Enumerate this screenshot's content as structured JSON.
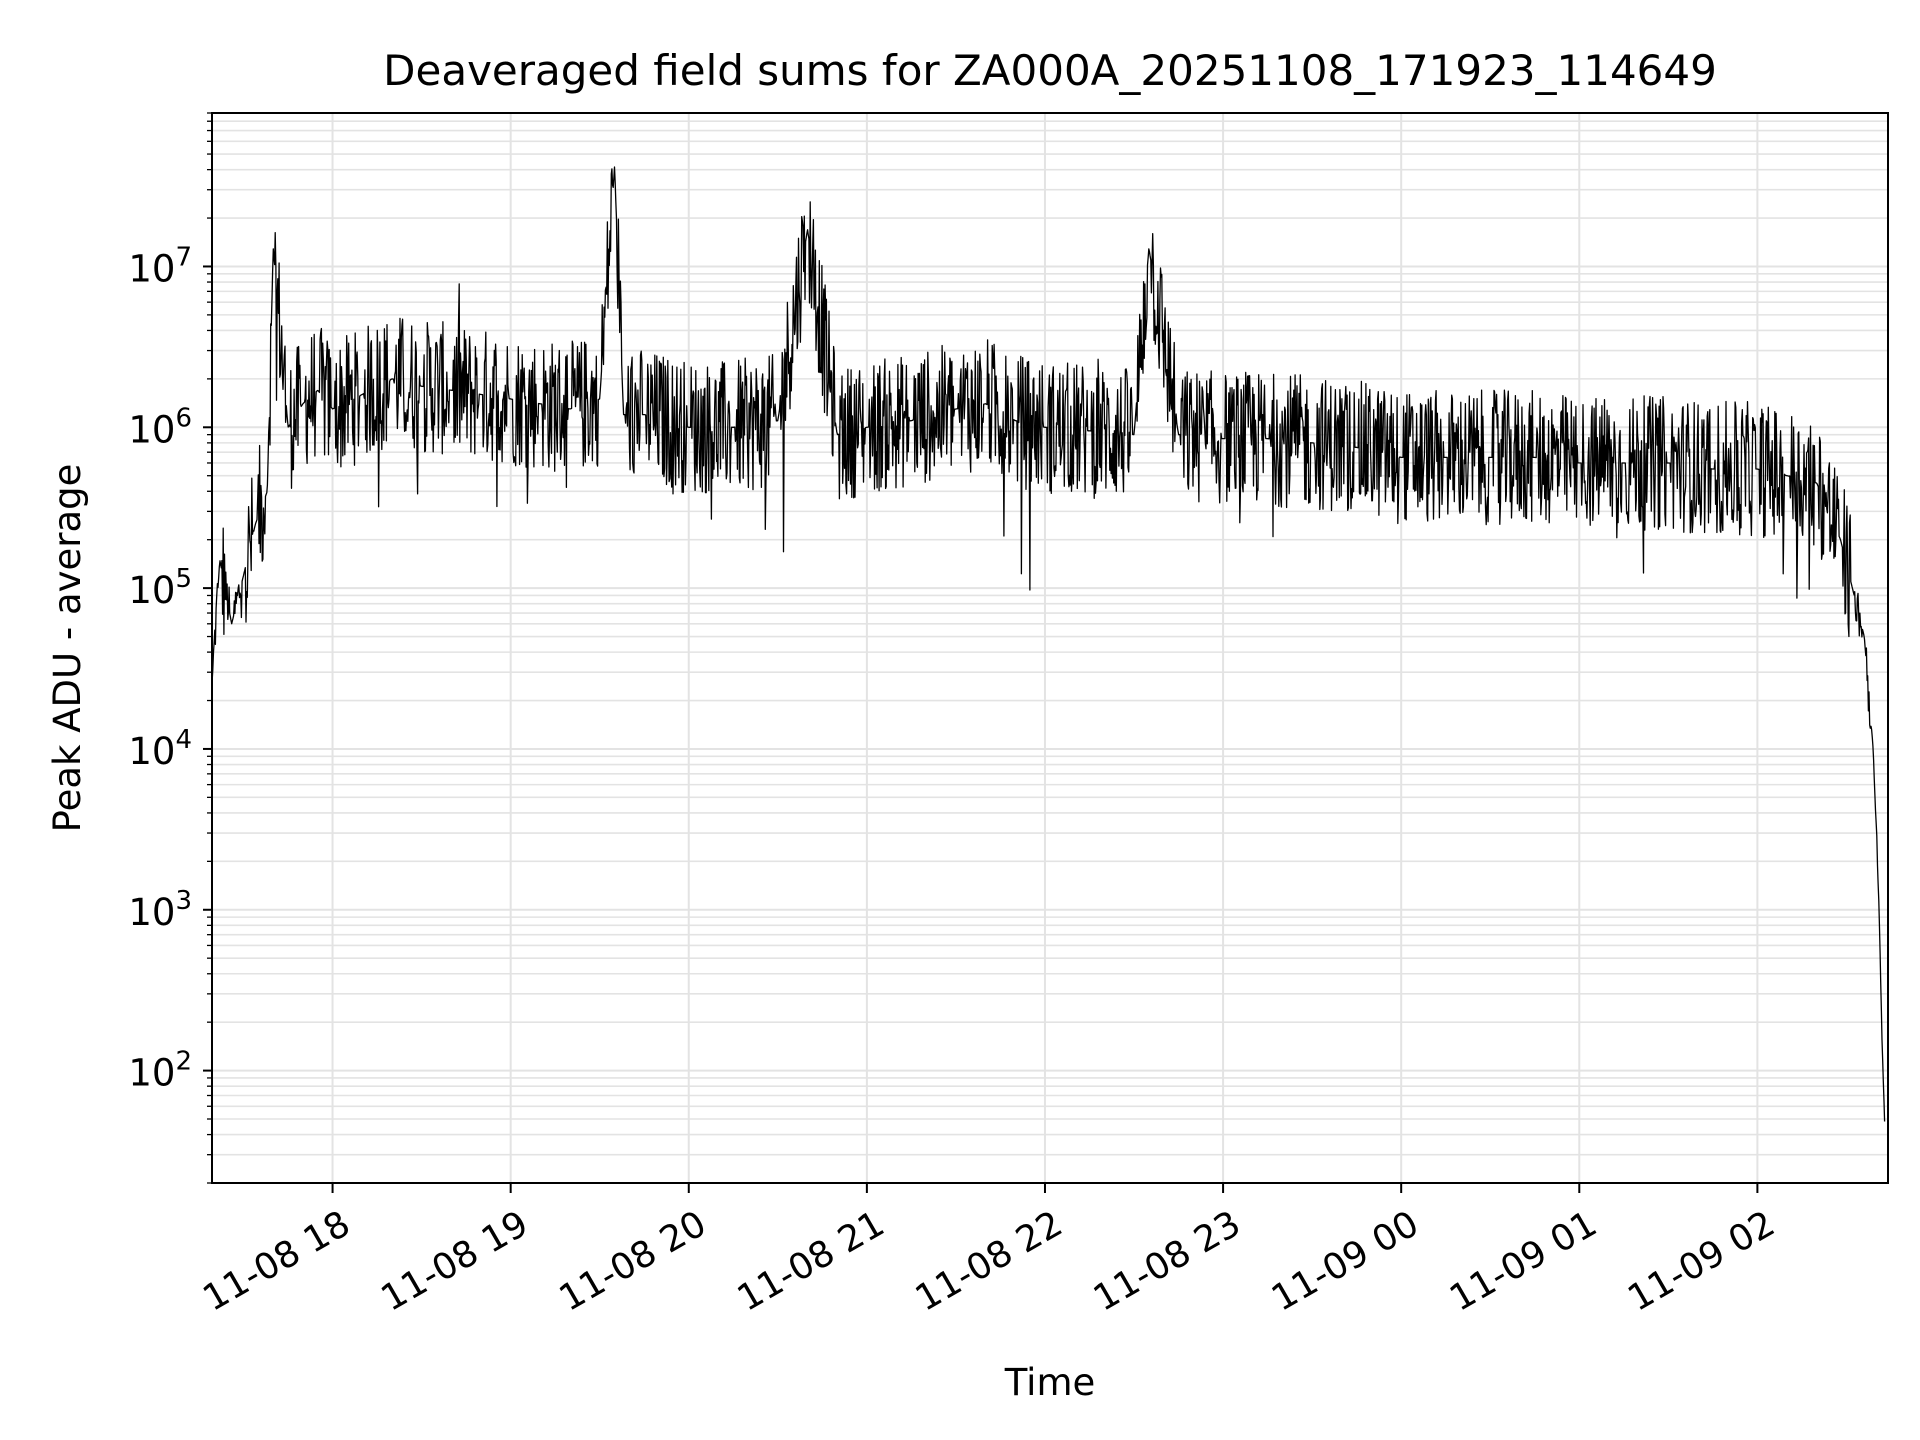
{
  "chart_data": {
    "type": "line",
    "title": "Deaveraged field sums for ZA000A_20251108_171923_114649",
    "xlabel": "Time",
    "ylabel": "Peak ADU - average",
    "y_scale": "log",
    "x_range": [
      "2025-11-08 17:19:23",
      "2025-11-09 02:44:00"
    ],
    "ylim": [
      20,
      90000000
    ],
    "grid": "major and minor, light gray",
    "line_color": "#000000",
    "x_ticks": [
      {
        "t": "2025-11-08 18:00",
        "label": "11-08 18"
      },
      {
        "t": "2025-11-08 19:00",
        "label": "11-08 19"
      },
      {
        "t": "2025-11-08 20:00",
        "label": "11-08 20"
      },
      {
        "t": "2025-11-08 21:00",
        "label": "11-08 21"
      },
      {
        "t": "2025-11-08 22:00",
        "label": "11-08 22"
      },
      {
        "t": "2025-11-08 23:00",
        "label": "11-08 23"
      },
      {
        "t": "2025-11-09 00:00",
        "label": "11-09 00"
      },
      {
        "t": "2025-11-09 01:00",
        "label": "11-09 01"
      },
      {
        "t": "2025-11-09 02:00",
        "label": "11-09 02"
      }
    ],
    "y_ticks": [
      {
        "value": 100,
        "base": "10",
        "exp": "2"
      },
      {
        "value": 1000,
        "base": "10",
        "exp": "3"
      },
      {
        "value": 10000,
        "base": "10",
        "exp": "4"
      },
      {
        "value": 100000,
        "base": "10",
        "exp": "5"
      },
      {
        "value": 1000000,
        "base": "10",
        "exp": "6"
      },
      {
        "value": 10000000,
        "base": "10",
        "exp": "7"
      }
    ],
    "series": [
      {
        "x": [
          "2025-11-08 17:19",
          "2025-11-08 17:22",
          "2025-11-08 17:26",
          "2025-11-08 17:30",
          "2025-11-08 17:34",
          "2025-11-08 17:38",
          "2025-11-08 17:40",
          "2025-11-08 17:45",
          "2025-11-08 17:50",
          "2025-11-08 17:55",
          "2025-11-08 18:00",
          "2025-11-08 18:10",
          "2025-11-08 18:20",
          "2025-11-08 18:30",
          "2025-11-08 18:40",
          "2025-11-08 18:50",
          "2025-11-08 19:00",
          "2025-11-08 19:10",
          "2025-11-08 19:20",
          "2025-11-08 19:30",
          "2025-11-08 19:35",
          "2025-11-08 19:38",
          "2025-11-08 19:45",
          "2025-11-08 20:00",
          "2025-11-08 20:15",
          "2025-11-08 20:30",
          "2025-11-08 20:40",
          "2025-11-08 20:50",
          "2025-11-08 21:00",
          "2025-11-08 21:15",
          "2025-11-08 21:30",
          "2025-11-08 21:40",
          "2025-11-08 21:50",
          "2025-11-08 22:00",
          "2025-11-08 22:15",
          "2025-11-08 22:30",
          "2025-11-08 22:35",
          "2025-11-08 22:45",
          "2025-11-08 23:00",
          "2025-11-08 23:15",
          "2025-11-08 23:30",
          "2025-11-08 23:45",
          "2025-11-09 00:00",
          "2025-11-09 00:15",
          "2025-11-09 00:30",
          "2025-11-09 00:45",
          "2025-11-09 01:00",
          "2025-11-09 01:15",
          "2025-11-09 01:30",
          "2025-11-09 01:45",
          "2025-11-09 02:00",
          "2025-11-09 02:10",
          "2025-11-09 02:20",
          "2025-11-09 02:28",
          "2025-11-09 02:32",
          "2025-11-09 02:36",
          "2025-11-09 02:39",
          "2025-11-09 02:41",
          "2025-11-09 02:42",
          "2025-11-09 02:43"
        ],
        "y": [
          20000,
          150000,
          60000,
          120000,
          250000,
          400000,
          13000000,
          1000000,
          1400000,
          1700000,
          1300000,
          1600000,
          2000000,
          1800000,
          1700000,
          1600000,
          1500000,
          1400000,
          1300000,
          1500000,
          42000000,
          1200000,
          1200000,
          1000000,
          1000000,
          1100000,
          17000000,
          900000,
          1000000,
          1100000,
          1300000,
          1400000,
          1100000,
          1000000,
          950000,
          900000,
          13000000,
          900000,
          850000,
          850000,
          800000,
          750000,
          650000,
          650000,
          650000,
          650000,
          600000,
          600000,
          600000,
          550000,
          550000,
          500000,
          450000,
          200000,
          100000,
          50000,
          10000,
          1000,
          150,
          40
        ]
      }
    ]
  }
}
